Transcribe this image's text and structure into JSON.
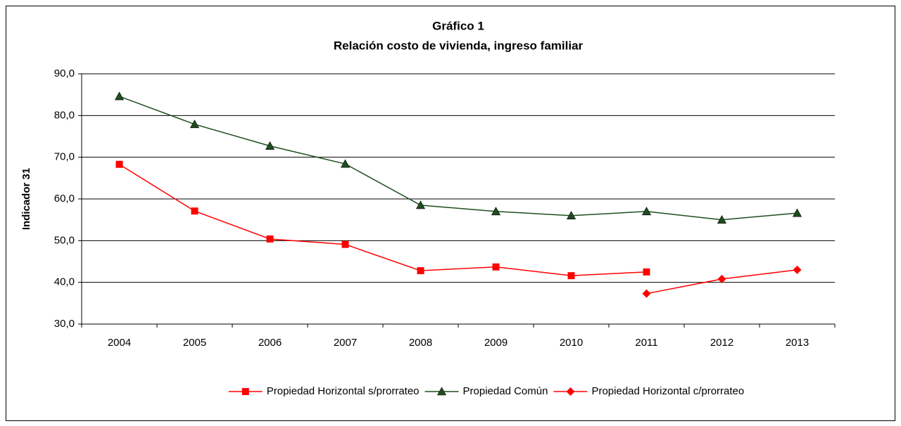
{
  "chart_data": {
    "type": "line",
    "title": "Gráfico 1",
    "subtitle": "Relación costo de vivienda, ingreso familiar",
    "ylabel": "Indicador 31",
    "categories": [
      "2004",
      "2005",
      "2006",
      "2007",
      "2008",
      "2009",
      "2010",
      "2011",
      "2012",
      "2013"
    ],
    "series": [
      {
        "name": "Propiedad Horizontal s/prorrateo",
        "color": "#ff0000",
        "marker": "square",
        "values": [
          68.3,
          57.1,
          50.4,
          49.1,
          42.8,
          43.7,
          41.6,
          42.5,
          null,
          null
        ]
      },
      {
        "name": "Propiedad Común",
        "color": "#1e4d1e",
        "marker": "triangle",
        "values": [
          84.6,
          77.9,
          72.7,
          68.4,
          58.5,
          57.0,
          56.0,
          57.0,
          55.0,
          56.6
        ]
      },
      {
        "name": "Propiedad Horizontal c/prorrateo",
        "color": "#ff0000",
        "marker": "diamond",
        "values": [
          null,
          null,
          null,
          null,
          null,
          null,
          null,
          37.3,
          40.8,
          43.0
        ]
      }
    ],
    "ylim": [
      30,
      90
    ],
    "yticks": [
      {
        "value": 30,
        "label": "30,0"
      },
      {
        "value": 40,
        "label": "40,0"
      },
      {
        "value": 50,
        "label": "50,0"
      },
      {
        "value": 60,
        "label": "60,0"
      },
      {
        "value": 70,
        "label": "70,0"
      },
      {
        "value": 80,
        "label": "80,0"
      },
      {
        "value": 90,
        "label": "90,0"
      }
    ],
    "grid": true,
    "legend": "bottom"
  }
}
